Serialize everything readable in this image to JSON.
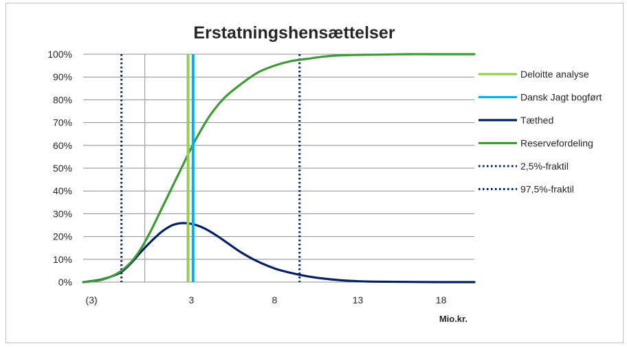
{
  "chart_data": {
    "type": "line",
    "title": "Erstatningshensættelser",
    "xlabel": "Mio.kr.",
    "ylabel": "",
    "xlim": [
      -3.5,
      20
    ],
    "ylim": [
      0,
      1
    ],
    "x_ticks": [
      {
        "value": -3,
        "label": "(3)"
      },
      {
        "value": 3,
        "label": "3"
      },
      {
        "value": 8,
        "label": "8"
      },
      {
        "value": 13,
        "label": "13"
      },
      {
        "value": 18,
        "label": "18"
      }
    ],
    "y_ticks": [
      {
        "value": 0,
        "label": "0%"
      },
      {
        "value": 0.1,
        "label": "10%"
      },
      {
        "value": 0.2,
        "label": "20%"
      },
      {
        "value": 0.3,
        "label": "30%"
      },
      {
        "value": 0.4,
        "label": "40%"
      },
      {
        "value": 0.5,
        "label": "50%"
      },
      {
        "value": 0.6,
        "label": "60%"
      },
      {
        "value": 0.7,
        "label": "70%"
      },
      {
        "value": 0.8,
        "label": "80%"
      },
      {
        "value": 0.9,
        "label": "90%"
      },
      {
        "value": 1.0,
        "label": "100%"
      }
    ],
    "grid": "horizontal",
    "legend_position": "right",
    "series": [
      {
        "name": "Deloitte analyse",
        "kind": "vline",
        "x": 2.8,
        "color": "#92d050"
      },
      {
        "name": "Dansk Jagt bogført",
        "kind": "vline",
        "x": 3.1,
        "color": "#00b0f0"
      },
      {
        "name": "Tæthed",
        "kind": "curve",
        "color": "#002060",
        "x": [
          -3.5,
          -2.5,
          -1.8,
          -1.2,
          -0.6,
          0,
          0.6,
          1.2,
          1.8,
          2.3,
          2.8,
          3.3,
          3.8,
          4.5,
          5.2,
          6,
          7,
          8,
          9,
          10,
          11,
          12,
          13,
          14,
          16,
          18,
          20
        ],
        "y": [
          0,
          0.01,
          0.025,
          0.045,
          0.085,
          0.135,
          0.18,
          0.22,
          0.248,
          0.258,
          0.258,
          0.25,
          0.235,
          0.205,
          0.17,
          0.13,
          0.09,
          0.06,
          0.04,
          0.025,
          0.015,
          0.008,
          0.004,
          0.002,
          0.001,
          0,
          0
        ]
      },
      {
        "name": "Reservefordeling",
        "kind": "curve",
        "color": "#3f9a35",
        "x": [
          -3.5,
          -2.5,
          -1.8,
          -1.2,
          -0.6,
          0,
          0.6,
          1.2,
          1.8,
          2.4,
          3,
          3.6,
          4.2,
          5,
          6,
          7,
          8,
          9,
          10,
          11,
          12,
          13,
          14,
          16,
          18,
          20
        ],
        "y": [
          0,
          0.008,
          0.025,
          0.05,
          0.09,
          0.15,
          0.23,
          0.32,
          0.41,
          0.5,
          0.59,
          0.67,
          0.74,
          0.81,
          0.87,
          0.92,
          0.95,
          0.97,
          0.98,
          0.99,
          0.995,
          0.997,
          0.998,
          1.0,
          1.0,
          1.0
        ]
      },
      {
        "name": "2,5%-fraktil",
        "kind": "vline-dotted",
        "x": -1.2,
        "color": "#002060"
      },
      {
        "name": "97,5%-fraktil",
        "kind": "vline-dotted",
        "x": 9.5,
        "color": "#002060"
      }
    ],
    "reference_lines": [
      {
        "kind": "vline-gray",
        "x": 0.2,
        "color": "#a6a6a6"
      }
    ]
  }
}
